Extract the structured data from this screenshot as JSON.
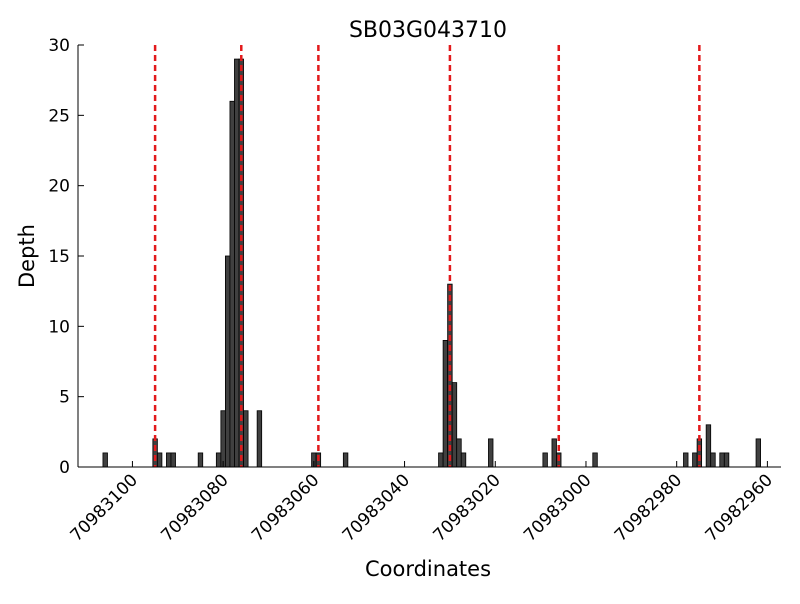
{
  "chart_data": {
    "type": "bar",
    "title": "SB03G043710",
    "xlabel": "Coordinates",
    "ylabel": "Depth",
    "x_axis_reversed": true,
    "xlim": [
      70983112,
      70982957
    ],
    "ylim": [
      0,
      30
    ],
    "x_ticks": [
      70983100,
      70983080,
      70983060,
      70983040,
      70983020,
      70983000,
      70982980,
      70982960
    ],
    "y_ticks": [
      0,
      5,
      10,
      15,
      20,
      25,
      30
    ],
    "x_tick_labels": [
      "70983100",
      "70983080",
      "70983060",
      "70983040",
      "70983020",
      "70983000",
      "70982980",
      "70982960"
    ],
    "y_tick_labels": [
      "0",
      "5",
      "10",
      "15",
      "20",
      "25",
      "30"
    ],
    "bar_color": "#404040",
    "bar_edge_color": "#000000",
    "reference_line_color": "#e31a1c",
    "reference_lines": [
      70983095,
      70983076,
      70983059,
      70983030,
      70983006,
      70982975
    ],
    "bars": [
      {
        "x": 70983106,
        "y": 1
      },
      {
        "x": 70983095,
        "y": 2
      },
      {
        "x": 70983094,
        "y": 1
      },
      {
        "x": 70983092,
        "y": 1
      },
      {
        "x": 70983091,
        "y": 1
      },
      {
        "x": 70983085,
        "y": 1
      },
      {
        "x": 70983081,
        "y": 1
      },
      {
        "x": 70983080,
        "y": 4
      },
      {
        "x": 70983079,
        "y": 15
      },
      {
        "x": 70983078,
        "y": 26
      },
      {
        "x": 70983077,
        "y": 29
      },
      {
        "x": 70983076,
        "y": 29
      },
      {
        "x": 70983075,
        "y": 4
      },
      {
        "x": 70983072,
        "y": 4
      },
      {
        "x": 70983060,
        "y": 1
      },
      {
        "x": 70983059,
        "y": 1
      },
      {
        "x": 70983053,
        "y": 1
      },
      {
        "x": 70983032,
        "y": 1
      },
      {
        "x": 70983031,
        "y": 9
      },
      {
        "x": 70983030,
        "y": 13
      },
      {
        "x": 70983029,
        "y": 6
      },
      {
        "x": 70983028,
        "y": 2
      },
      {
        "x": 70983027,
        "y": 1
      },
      {
        "x": 70983021,
        "y": 2
      },
      {
        "x": 70983009,
        "y": 1
      },
      {
        "x": 70983007,
        "y": 2
      },
      {
        "x": 70983006,
        "y": 1
      },
      {
        "x": 70982998,
        "y": 1
      },
      {
        "x": 70982978,
        "y": 1
      },
      {
        "x": 70982976,
        "y": 1
      },
      {
        "x": 70982975,
        "y": 2
      },
      {
        "x": 70982973,
        "y": 3
      },
      {
        "x": 70982972,
        "y": 1
      },
      {
        "x": 70982970,
        "y": 1
      },
      {
        "x": 70982969,
        "y": 1
      },
      {
        "x": 70982962,
        "y": 2
      }
    ]
  }
}
